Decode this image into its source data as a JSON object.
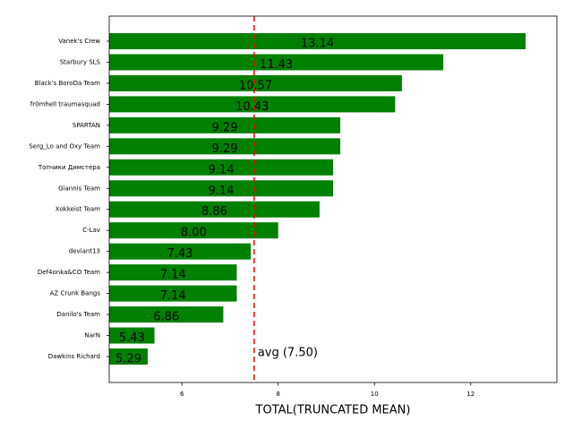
{
  "chart_data": {
    "type": "barh",
    "categories": [
      "Vanek's Crew",
      "Starbury SLS",
      "Black's BoroDa Team",
      "fr0mhell traumasquad",
      "SPARTAN",
      "Serg_Lo and Oxy Team",
      "Топчики Димстера",
      "Giannis Team",
      "Xokkeist Team",
      "C-Lav",
      "deviant13",
      "Def4onka&CO Team",
      "AZ Crunk Bangs",
      "Danilo's Team",
      "NarN",
      "Dawkins Richard"
    ],
    "values": [
      13.14,
      11.43,
      10.57,
      10.43,
      9.29,
      9.29,
      9.14,
      9.14,
      8.86,
      8.0,
      7.43,
      7.14,
      7.14,
      6.86,
      5.43,
      5.29
    ],
    "value_labels": [
      "13.14",
      "11.43",
      "10.57",
      "10.43",
      "9.29",
      "9.29",
      "9.14",
      "9.14",
      "8.86",
      "8.00",
      "7.43",
      "7.14",
      "7.14",
      "6.86",
      "5.43",
      "5.29"
    ],
    "color": "#008000",
    "xlabel": "TOTAL(TRUNCATED MEAN)",
    "xlim": [
      4.49,
      13.79
    ],
    "xticks": [
      6,
      8,
      10,
      12
    ],
    "avg_line": {
      "value": 7.5,
      "label": "avg (7.50)",
      "color": "#ff0000"
    }
  }
}
